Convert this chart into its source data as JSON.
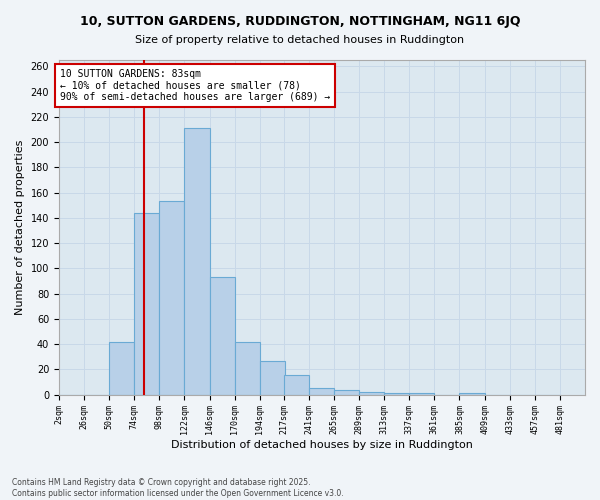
{
  "title": "10, SUTTON GARDENS, RUDDINGTON, NOTTINGHAM, NG11 6JQ",
  "subtitle": "Size of property relative to detached houses in Ruddington",
  "xlabel": "Distribution of detached houses by size in Ruddington",
  "ylabel": "Number of detached properties",
  "footer_line1": "Contains HM Land Registry data © Crown copyright and database right 2025.",
  "footer_line2": "Contains public sector information licensed under the Open Government Licence v3.0.",
  "bin_labels": [
    "2sqm",
    "26sqm",
    "50sqm",
    "74sqm",
    "98sqm",
    "122sqm",
    "146sqm",
    "170sqm",
    "194sqm",
    "217sqm",
    "241sqm",
    "265sqm",
    "289sqm",
    "313sqm",
    "337sqm",
    "361sqm",
    "385sqm",
    "409sqm",
    "433sqm",
    "457sqm",
    "481sqm"
  ],
  "bin_left_edges": [
    2,
    26,
    50,
    74,
    98,
    122,
    146,
    170,
    194,
    217,
    241,
    265,
    289,
    313,
    337,
    361,
    385,
    409,
    433,
    457,
    481
  ],
  "bin_width": 24,
  "bar_heights": [
    0,
    0,
    42,
    144,
    153,
    211,
    93,
    42,
    27,
    16,
    5,
    4,
    2,
    1,
    1,
    0,
    1,
    0,
    0,
    0
  ],
  "bar_color": "#b8d0e8",
  "bar_edge_color": "#6aaad4",
  "property_size": 83,
  "vline_color": "#cc0000",
  "annotation_title": "10 SUTTON GARDENS: 83sqm",
  "annotation_line2": "← 10% of detached houses are smaller (78)",
  "annotation_line3": "90% of semi-detached houses are larger (689) →",
  "annotation_box_color": "#cc0000",
  "ylim": [
    0,
    265
  ],
  "ytick_step": 20,
  "grid_color": "#c8d8e8",
  "background_color": "#f0f4f8",
  "plot_bg_color": "#dce8f0"
}
